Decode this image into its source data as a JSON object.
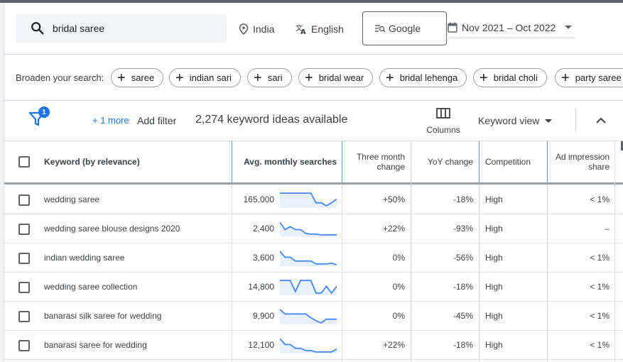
{
  "search": {
    "query": "bridal saree"
  },
  "filters": {
    "location": "India",
    "language": "English",
    "network": "Google",
    "date_range": "Nov 2021 – Oct 2022"
  },
  "broaden": {
    "label": "Broaden your search:",
    "chips": [
      "saree",
      "indian sari",
      "sari",
      "bridal wear",
      "bridal lehenga",
      "bridal choli",
      "party saree"
    ]
  },
  "toolbar": {
    "filter_badge": "1",
    "more_filters": "+ 1 more",
    "add_filter": "Add filter",
    "ideas_count": "2,274 keyword ideas available",
    "columns": "Columns",
    "view": "Keyword view"
  },
  "table": {
    "headers": {
      "keyword": "Keyword (by relevance)",
      "avg": "Avg. monthly searches",
      "three_month_1": "Three month",
      "three_month_2": "change",
      "yoy": "YoY change",
      "competition": "Competition",
      "ad_share_1": "Ad impression",
      "ad_share_2": "share"
    },
    "rows": [
      {
        "keyword": "wedding saree",
        "avg": "165,000",
        "three_month": "+50%",
        "yoy": "-18%",
        "competition": "High",
        "ad_share": "< 1%",
        "trend": [
          0.95,
          0.95,
          0.95,
          0.95,
          0.95,
          0.95,
          0.95,
          0.3,
          0.3,
          0.1,
          0.3,
          0.55
        ]
      },
      {
        "keyword": "wedding saree blouse designs 2020",
        "avg": "2,400",
        "three_month": "+22%",
        "yoy": "-93%",
        "competition": "High",
        "ad_share": "–",
        "trend": [
          0.95,
          0.45,
          0.65,
          0.45,
          0.45,
          0.2,
          0.15,
          0.15,
          0.1,
          0.1,
          0.1,
          0.1
        ]
      },
      {
        "keyword": "indian wedding saree",
        "avg": "3,600",
        "three_month": "0%",
        "yoy": "-56%",
        "competition": "High",
        "ad_share": "< 1%",
        "trend": [
          0.95,
          0.55,
          0.55,
          0.3,
          0.3,
          0.3,
          0.3,
          0.1,
          0.1,
          0.1,
          0.15,
          0.05
        ]
      },
      {
        "keyword": "wedding saree collection",
        "avg": "14,800",
        "three_month": "0%",
        "yoy": "-18%",
        "competition": "High",
        "ad_share": "< 1%",
        "trend": [
          0.95,
          0.95,
          0.95,
          0.2,
          0.95,
          0.95,
          0.95,
          0.1,
          0.1,
          0.55,
          0.1,
          0.55
        ]
      },
      {
        "keyword": "banarasi silk saree for wedding",
        "avg": "9,900",
        "three_month": "0%",
        "yoy": "-45%",
        "competition": "High",
        "ad_share": "< 1%",
        "trend": [
          0.95,
          0.65,
          0.65,
          0.65,
          0.65,
          0.65,
          0.4,
          0.2,
          0.05,
          0.3,
          0.3,
          0.3
        ]
      },
      {
        "keyword": "banarasi saree for wedding",
        "avg": "12,100",
        "three_month": "+22%",
        "yoy": "-18%",
        "competition": "High",
        "ad_share": "< 1%",
        "trend": [
          0.95,
          0.55,
          0.55,
          0.3,
          0.3,
          0.15,
          0.15,
          0.05,
          0.05,
          0.05,
          0.05,
          0.25
        ]
      }
    ]
  }
}
